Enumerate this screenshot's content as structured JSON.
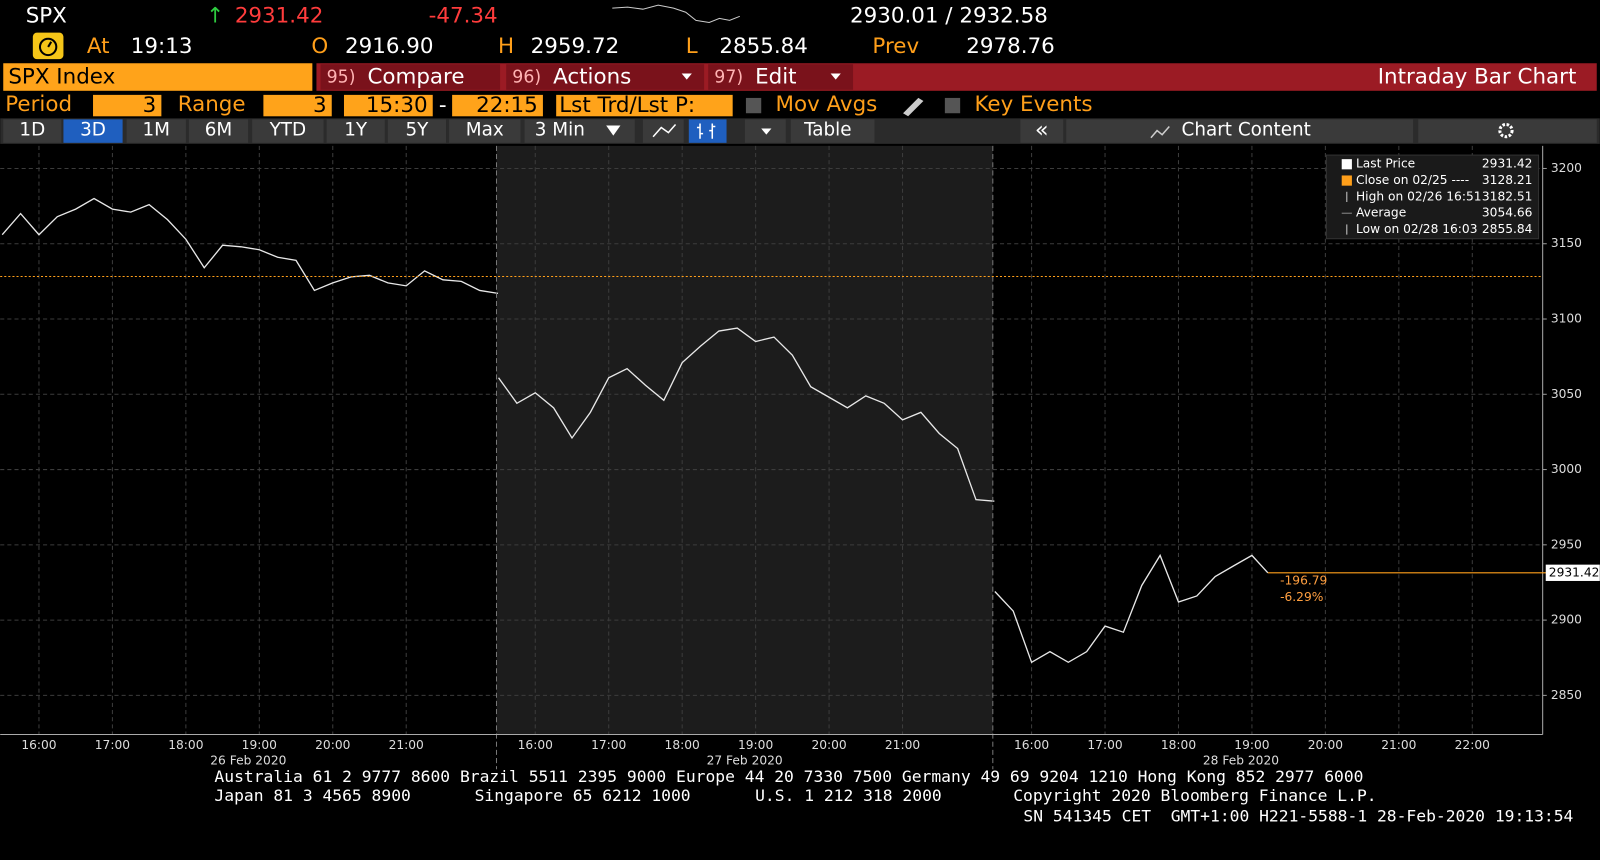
{
  "header": {
    "ticker": "SPX",
    "last": "2931.42",
    "change": "-47.34",
    "bid_ask": "2930.01 / 2932.58",
    "time_label": "At",
    "time": "19:13",
    "open_label": "O",
    "open": "2916.90",
    "high_label": "H",
    "high": "2959.72",
    "low_label": "L",
    "low": "2855.84",
    "prev_label": "Prev",
    "prev": "2978.76"
  },
  "menu": {
    "security": "SPX Index",
    "items": [
      {
        "key": "95)",
        "label": "Compare"
      },
      {
        "key": "96)",
        "label": "Actions"
      },
      {
        "key": "97)",
        "label": "Edit"
      }
    ],
    "title": "Intraday Bar Chart"
  },
  "settings": {
    "period_label": "Period",
    "period": "3",
    "range_label": "Range",
    "range": "3",
    "start": "15:30",
    "sep": "-",
    "end": "22:15",
    "mode": "Lst Trd/Lst P:",
    "mov_avgs": "Mov Avgs",
    "key_events": "Key Events"
  },
  "toolbar": {
    "ranges": [
      "1D",
      "3D",
      "1M",
      "6M",
      "YTD",
      "1Y",
      "5Y",
      "Max"
    ],
    "interval": "3 Min",
    "table": "Table",
    "collapse": "«",
    "chart_content": "Chart Content"
  },
  "chart_data": {
    "type": "intraday-bar",
    "ylim": [
      2824,
      3215
    ],
    "yticks": [
      2850,
      2900,
      2950,
      3000,
      3050,
      3100,
      3150,
      3200
    ],
    "grid": true,
    "sessions": [
      {
        "date": "26 Feb 2020",
        "xticks": [
          "16:00",
          "17:00",
          "18:00",
          "19:00",
          "20:00",
          "21:00"
        ],
        "x": [
          "15:30",
          "15:45",
          "16:00",
          "16:15",
          "16:30",
          "16:45",
          "17:00",
          "17:15",
          "17:30",
          "17:45",
          "18:00",
          "18:15",
          "18:30",
          "18:45",
          "19:00",
          "19:15",
          "19:30",
          "19:45",
          "20:00",
          "20:15",
          "20:30",
          "20:45",
          "21:00",
          "21:15",
          "21:30",
          "21:45",
          "22:00",
          "22:15"
        ],
        "values": [
          3156,
          3170,
          3156,
          3168,
          3173,
          3180,
          3173,
          3171,
          3176,
          3166,
          3153,
          3134,
          3149,
          3148,
          3146,
          3141,
          3139,
          3119,
          3124,
          3128,
          3129,
          3124,
          3122,
          3132,
          3126,
          3125,
          3119,
          3117
        ]
      },
      {
        "date": "27 Feb 2020",
        "xticks": [
          "16:00",
          "17:00",
          "18:00",
          "19:00",
          "20:00",
          "21:00"
        ],
        "x": [
          "15:30",
          "15:45",
          "16:00",
          "16:15",
          "16:30",
          "16:45",
          "17:00",
          "17:15",
          "17:30",
          "17:45",
          "18:00",
          "18:15",
          "18:30",
          "18:45",
          "19:00",
          "19:15",
          "19:30",
          "19:45",
          "20:00",
          "20:15",
          "20:30",
          "20:45",
          "21:00",
          "21:15",
          "21:30",
          "21:45",
          "22:00",
          "22:15"
        ],
        "values": [
          3061,
          3044,
          3051,
          3041,
          3021,
          3038,
          3061,
          3067,
          3056,
          3046,
          3071,
          3082,
          3092,
          3094,
          3085,
          3088,
          3076,
          3055,
          3048,
          3041,
          3049,
          3044,
          3033,
          3038,
          3024,
          3014,
          2980,
          2979
        ]
      },
      {
        "date": "28 Feb 2020",
        "xticks": [
          "16:00",
          "17:00",
          "18:00",
          "19:00",
          "20:00",
          "21:00",
          "22:00"
        ],
        "x": [
          "15:30",
          "15:45",
          "16:00",
          "16:15",
          "16:30",
          "16:45",
          "17:00",
          "17:15",
          "17:30",
          "17:45",
          "18:00",
          "18:15",
          "18:30",
          "18:45",
          "19:00",
          "19:13"
        ],
        "values": [
          2919,
          2906,
          2872,
          2879,
          2872,
          2879,
          2896,
          2892,
          2923,
          2943,
          2912,
          2916,
          2929,
          2936,
          2943,
          2931.42
        ]
      }
    ],
    "legend": [
      {
        "name": "Last Price",
        "value": 2931.42
      },
      {
        "name": "Close on 02/25 ----",
        "value": 3128.21
      },
      {
        "name": "High on 02/26 16:51",
        "value": 3182.51
      },
      {
        "name": "Average",
        "value": 3054.66
      },
      {
        "name": "Low on 02/28 16:03",
        "value": 2855.84
      }
    ],
    "change": -196.79,
    "change_pct": {
      "value": -6.29,
      "label": "-6.29%"
    }
  },
  "footer": {
    "line1": "Australia 61 2 9777 8600 Brazil 5511 2395 9000 Europe 44 20 7330 7500 Germany 49 69 9204 1210 Hong Kong 852 2977 6000",
    "line2": [
      "Japan 81 3 4565 8900",
      "Singapore 65 6212 1000",
      "U.S. 1 212 318 2000",
      "Copyright 2020 Bloomberg Finance L.P."
    ],
    "line3": "SN 541345 CET  GMT+1:00 H221-5588-1 28-Feb-2020 19:13:54"
  }
}
